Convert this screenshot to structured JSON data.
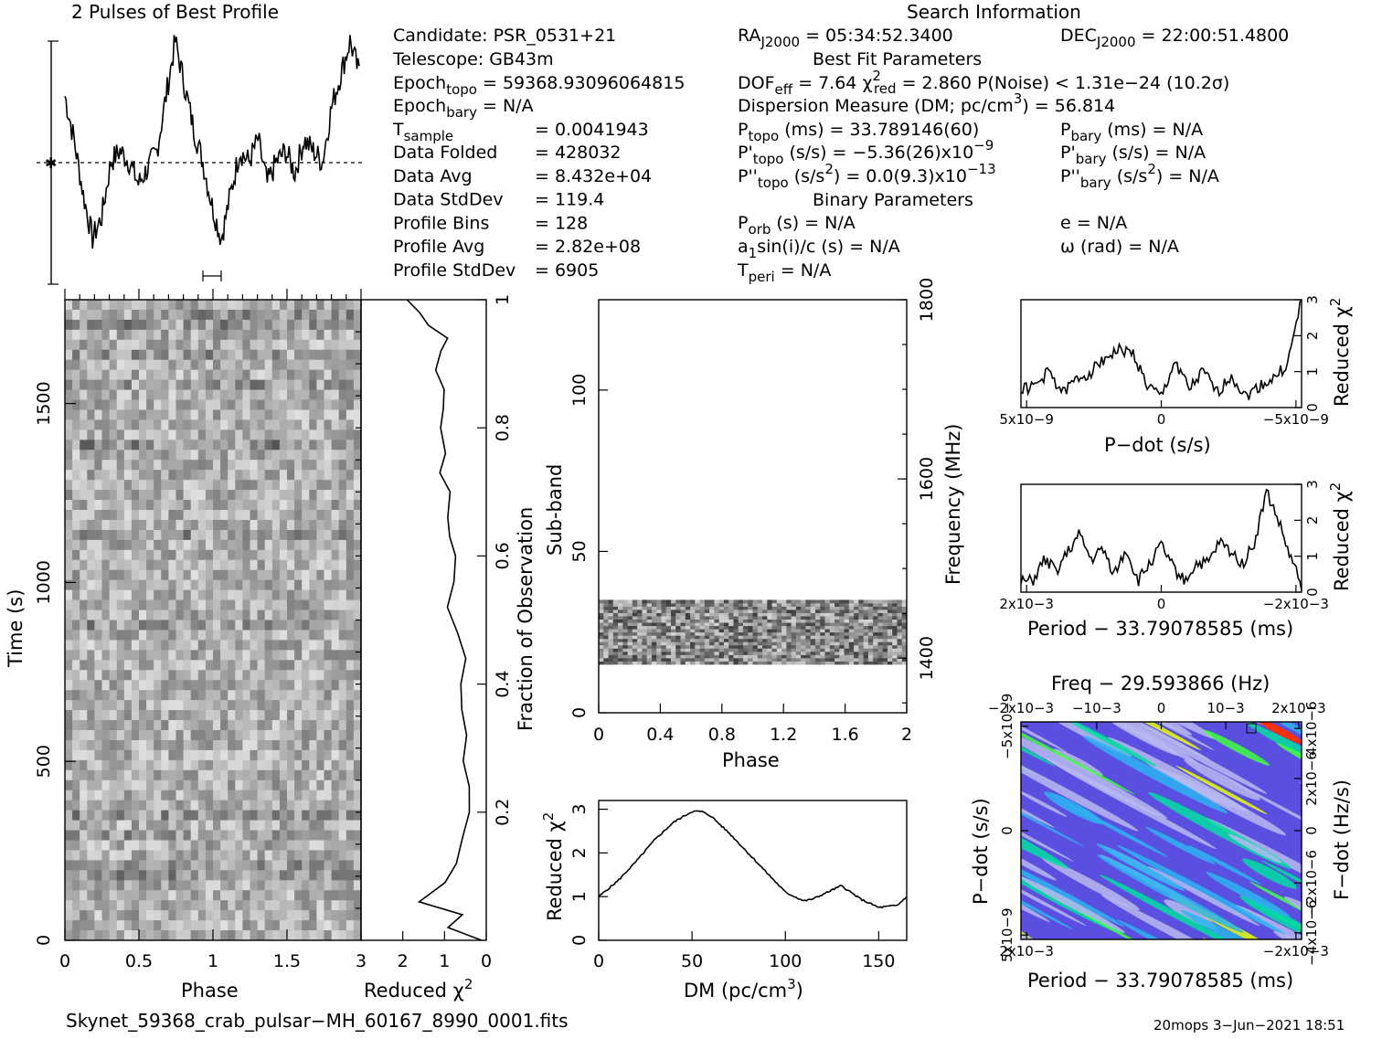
{
  "header": {
    "profile_title": "2 Pulses of Best Profile",
    "search_title": "Search Information",
    "best_fit_title": "Best Fit Parameters",
    "binary_title": "Binary Parameters"
  },
  "info": {
    "candidate": "Candidate:  PSR_0531+21",
    "telescope": "Telescope:  GB43m",
    "epoch_topo": "Epoch",
    "epoch_topo_sub": "topo",
    "epoch_topo_val": " = 59368.93096064815",
    "epoch_bary": "Epoch",
    "epoch_bary_sub": "bary",
    "epoch_bary_val": " = N/A",
    "tsample_lbl": "T",
    "tsample_sub": "sample",
    "tsample_val": "=   0.0041943",
    "rows": [
      {
        "label": "Data Folded",
        "value": "=   428032"
      },
      {
        "label": "Data Avg",
        "value": "=   8.432e+04"
      },
      {
        "label": "Data StdDev",
        "value": "=   119.4"
      },
      {
        "label": "Profile Bins",
        "value": "=   128"
      },
      {
        "label": "Profile Avg",
        "value": "=   2.82e+08"
      },
      {
        "label": "Profile StdDev",
        "value": "=   6905"
      }
    ]
  },
  "search": {
    "ra": "RA",
    "ra_sub": "J2000",
    "ra_val": " = 05:34:52.3400",
    "dec": "DEC",
    "dec_sub": "J2000",
    "dec_val": " = 22:00:51.4800",
    "dof": "DOF",
    "dof_sub": "eff",
    "dof_val": " = 7.64  ",
    "chi": "χ",
    "chi_sup": "2",
    "chi_sub": "red",
    "chi_val": " = 2.860   P(Noise) < 1.31e−24   (10.2σ)",
    "dm_line": "Dispersion Measure (DM; pc/cm",
    "dm_sup": "3",
    "dm_val": ") = 56.814",
    "ptopo": "P",
    "ptopo_sub": "topo",
    "ptopo_val": " (ms) =  33.789146(60)",
    "pbary": "P",
    "pbary_sub": "bary",
    "pbary_val": " (ms) = N/A",
    "pdtopo": "P'",
    "pdtopo_sub": "topo",
    "pdtopo_val": " (s/s) = −5.36(26)x10",
    "pdtopo_exp": "−9",
    "pdbary": "P'",
    "pdbary_sub": "bary",
    "pdbary_val": " (s/s) = N/A",
    "pddtopo": "P''",
    "pddtopo_sub": "topo",
    "pddtopo_val": " (s/s",
    "pddtopo_sup": "2",
    "pddtopo_val2": ") = 0.0(9.3)x10",
    "pddtopo_exp": "−13",
    "pddbary": "P''",
    "pddbary_sub": "bary",
    "pddbary_val": " (s/s",
    "pddbary_sup": "2",
    "pddbary_val2": ") = N/A",
    "porb": "P",
    "porb_sub": "orb",
    "porb_val": " (s) = N/A",
    "e_val": "e = N/A",
    "a1": "a",
    "a1_sub": "1",
    "a1_val": "sin(i)/c (s) = N/A",
    "omega_val": "ω (rad) = N/A",
    "tperi": "T",
    "tperi_sub": "peri",
    "tperi_val": " = N/A"
  },
  "footer": {
    "filename": "Skynet_59368_crab_pulsar−MH_60167_8990_0001.fits",
    "stamp": "20mops  3−Jun−2021 18:51"
  },
  "chart_data": [
    {
      "type": "line",
      "title": "2 Pulses of Best Profile",
      "x": [
        0.0,
        0.0625,
        0.125,
        0.1875,
        0.25,
        0.3125,
        0.375,
        0.4375,
        0.5,
        0.5625,
        0.625,
        0.6875,
        0.75,
        0.8125,
        0.875,
        0.9375,
        1.0,
        1.0625,
        1.125,
        1.1875,
        1.25,
        1.3125,
        1.375,
        1.4375,
        1.5,
        1.5625,
        1.625,
        1.6875,
        1.75,
        1.8125,
        1.875,
        1.9375,
        2.0
      ],
      "values": [
        0.75,
        0.55,
        0.3,
        0.1,
        0.2,
        0.45,
        0.5,
        0.45,
        0.35,
        0.42,
        0.5,
        0.75,
        1.0,
        0.8,
        0.6,
        0.45,
        0.25,
        0.1,
        0.3,
        0.5,
        0.45,
        0.55,
        0.35,
        0.45,
        0.5,
        0.4,
        0.55,
        0.5,
        0.45,
        0.7,
        0.85,
        1.0,
        0.85
      ],
      "xlim": [
        0,
        2
      ]
    },
    {
      "type": "heatmap",
      "xlabel": "Phase",
      "ylabel": "Time (s)",
      "xticks": [
        "0",
        "0.5",
        "1",
        "1.5"
      ],
      "yticks": [
        "0",
        "500",
        "1000",
        "1500"
      ],
      "xlim": [
        0,
        2
      ],
      "ylim": [
        0,
        1790
      ]
    },
    {
      "type": "line",
      "xlabel": "Reduced χ2",
      "ylabel": "Fraction of Observation",
      "xticks": [
        "3",
        "2",
        "1",
        "0"
      ],
      "yticks": [
        "0.2",
        "0.4",
        "0.6",
        "0.8",
        "1"
      ],
      "x": [
        0.1,
        0.9,
        0.6,
        1.6,
        1.0,
        0.7,
        0.6,
        0.4,
        0.4,
        0.55,
        0.5,
        0.6,
        0.6,
        0.5,
        0.7,
        0.9,
        0.8,
        0.75,
        0.9,
        0.9,
        0.85,
        1.1,
        1.0,
        1.1,
        1.05,
        1.0,
        1.2,
        1.1,
        0.9,
        1.4,
        1.6,
        1.9
      ],
      "y": [
        0.0,
        0.02,
        0.04,
        0.06,
        0.09,
        0.12,
        0.16,
        0.2,
        0.24,
        0.28,
        0.32,
        0.36,
        0.4,
        0.44,
        0.48,
        0.52,
        0.56,
        0.6,
        0.63,
        0.66,
        0.7,
        0.73,
        0.76,
        0.8,
        0.83,
        0.86,
        0.89,
        0.92,
        0.94,
        0.96,
        0.98,
        1.0
      ],
      "xlim": [
        3,
        0
      ],
      "ylim": [
        0,
        1
      ]
    },
    {
      "type": "heatmap",
      "xlabel": "Phase",
      "ylabel": "Sub-band",
      "y2label": "Frequency (MHz)",
      "xticks": [
        "0",
        "0.4",
        "0.8",
        "1.2",
        "1.6",
        "2"
      ],
      "yticks": [
        "0",
        "50",
        "100"
      ],
      "y2ticks": [
        "1400",
        "1600",
        "1800"
      ],
      "xlim": [
        0,
        2
      ],
      "ylim": [
        0,
        128
      ],
      "filled_subbands": [
        15,
        35
      ]
    },
    {
      "type": "line",
      "xlabel": "DM (pc/cm3)",
      "ylabel": "Reduced χ2",
      "xticks": [
        "0",
        "50",
        "100",
        "150"
      ],
      "yticks": [
        "0",
        "1",
        "2",
        "3"
      ],
      "x": [
        0,
        10,
        20,
        30,
        40,
        50,
        55,
        60,
        70,
        80,
        90,
        100,
        110,
        115,
        120,
        130,
        140,
        150,
        160,
        165
      ],
      "values": [
        1.0,
        1.35,
        1.8,
        2.3,
        2.7,
        2.95,
        2.95,
        2.85,
        2.45,
        2.0,
        1.55,
        1.1,
        0.9,
        0.95,
        1.05,
        1.25,
        0.95,
        0.75,
        0.8,
        1.0
      ],
      "xlim": [
        0,
        165
      ],
      "ylim": [
        0,
        3.2
      ]
    },
    {
      "type": "line",
      "xlabel": "P−dot (s/s)",
      "ylabel": "Reduced χ2",
      "xticks": [
        "5x10−9",
        "0",
        "−5x10−9"
      ],
      "yticks": [
        "0",
        "1",
        "2",
        "3"
      ],
      "x": [
        5,
        4.5,
        4,
        3.5,
        3,
        2.5,
        2,
        1.5,
        1,
        0.5,
        0,
        -0.5,
        -1,
        -1.5,
        -2,
        -2.5,
        -3,
        -3.5,
        -4,
        -4.5,
        -5
      ],
      "values": [
        0.5,
        0.6,
        1.0,
        0.4,
        0.8,
        1.0,
        1.4,
        1.6,
        1.5,
        0.6,
        0.3,
        1.3,
        0.5,
        1.0,
        0.4,
        0.9,
        0.3,
        0.6,
        0.8,
        1.2,
        3.0
      ],
      "xlim": [
        5,
        -5
      ],
      "ylim": [
        0,
        3
      ]
    },
    {
      "type": "line",
      "xlabel": "Period − 33.79078585 (ms)",
      "ylabel": "Reduced χ2",
      "xticks": [
        "2x10−3",
        "0",
        "−2x10−3"
      ],
      "yticks": [
        "0",
        "1",
        "2",
        "3"
      ],
      "x": [
        2.4,
        2.2,
        2.0,
        1.8,
        1.6,
        1.4,
        1.2,
        1.0,
        0.8,
        0.6,
        0.4,
        0.2,
        0,
        -0.2,
        -0.4,
        -0.6,
        -0.8,
        -1.0,
        -1.2,
        -1.4,
        -1.6,
        -1.8,
        -2.0,
        -2.2,
        -2.4
      ],
      "values": [
        0.3,
        0.3,
        0.9,
        0.6,
        1.1,
        1.6,
        0.9,
        1.2,
        0.5,
        1.2,
        0.3,
        0.8,
        1.3,
        0.7,
        0.3,
        0.8,
        0.8,
        1.4,
        1.1,
        0.8,
        1.4,
        2.8,
        2.0,
        1.0,
        0.2
      ],
      "xlim": [
        2.4,
        -2.4
      ],
      "ylim": [
        0,
        3
      ]
    },
    {
      "type": "heatmap",
      "title": "Freq − 29.593866 (Hz)",
      "xlabel": "Period − 33.79078585 (ms)",
      "ylabel": "P−dot (s/s)",
      "y2label": "F−dot (Hz/s)",
      "xticks": [
        "2x10−3",
        "−2x10−3"
      ],
      "x2ticks": [
        "−2x10−3",
        "−10−3",
        "0",
        "10−3",
        "2x10−3"
      ],
      "yticks": [
        "5x10−9",
        "0",
        "−5x10−9"
      ],
      "y2ticks": [
        "−4x10−6",
        "−2x10−6",
        "0",
        "2x10−6",
        "4x10−6"
      ],
      "colors": [
        "#5a4fe0",
        "#b8b8f0",
        "#2db4f0",
        "#00e0a0",
        "#40ff40",
        "#e8ff00",
        "#ff3000"
      ]
    }
  ]
}
